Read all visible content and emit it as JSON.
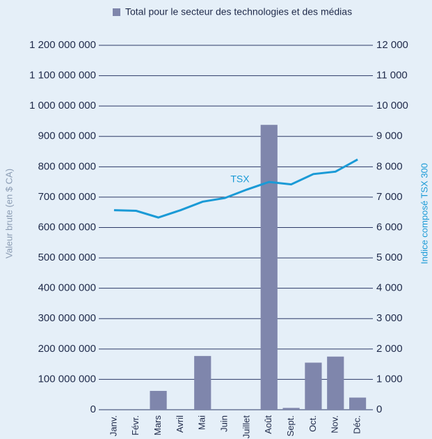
{
  "chart_data": {
    "type": "bar",
    "categories": [
      "Janv.",
      "Févr.",
      "Mars",
      "Avril",
      "Mai",
      "Juin",
      "Juillet",
      "Août",
      "Sept.",
      "Oct.",
      "Nov.",
      "Déc."
    ],
    "series": [
      {
        "name": "Total pour le secteur des technologies et des médias",
        "color": "#7f86ac",
        "type": "bar",
        "values": [
          0,
          0,
          62000000,
          0,
          177000000,
          0,
          0,
          938000000,
          6000000,
          155000000,
          175000000,
          40000000
        ]
      },
      {
        "name": "TSX",
        "color": "#1a9ad6",
        "type": "line",
        "axis": "y2",
        "values": [
          6570,
          6550,
          6330,
          6570,
          6850,
          6970,
          7250,
          7500,
          7420,
          7760,
          7840,
          8240
        ]
      }
    ],
    "ylabel": "Valeur brute (en $ CA)",
    "y2label": "Indice composé TSX 300",
    "ylim": [
      0,
      1200000000
    ],
    "yticks": [
      0,
      {
        "value": 100000000,
        "label": "100 000 000"
      },
      {
        "value": 200000000,
        "label": "200 000 000"
      },
      {
        "value": 300000000,
        "label": "300 000 000"
      },
      {
        "value": 400000000,
        "label": "400 000 000"
      },
      {
        "value": 500000000,
        "label": "500 000 000"
      },
      {
        "value": 600000000,
        "label": "600 000 000"
      },
      {
        "value": 700000000,
        "label": "700 000 000"
      },
      {
        "value": 800000000,
        "label": "800 000 000"
      },
      {
        "value": 900000000,
        "label": "900 000 000"
      },
      {
        "value": 1000000000,
        "label": "1 000 000 000"
      },
      {
        "value": 1100000000,
        "label": "1 100 000 000"
      },
      {
        "value": 1200000000,
        "label": "1 200 000 000"
      }
    ],
    "y2lim": [
      0,
      12000
    ],
    "y2ticks": [
      0,
      {
        "value": 1000,
        "label": "1 000"
      },
      {
        "value": 2000,
        "label": "2 000"
      },
      {
        "value": 3000,
        "label": "3 000"
      },
      {
        "value": 4000,
        "label": "4 000"
      },
      {
        "value": 5000,
        "label": "5 000"
      },
      {
        "value": 6000,
        "label": "6 000"
      },
      {
        "value": 7000,
        "label": "7 000"
      },
      {
        "value": 8000,
        "label": "8 000"
      },
      {
        "value": 9000,
        "label": "9 000"
      },
      {
        "value": 10000,
        "label": "10 000"
      },
      {
        "value": 11000,
        "label": "11 000"
      },
      {
        "value": 12000,
        "label": "12 000"
      }
    ],
    "grid": true,
    "legend": "top"
  }
}
